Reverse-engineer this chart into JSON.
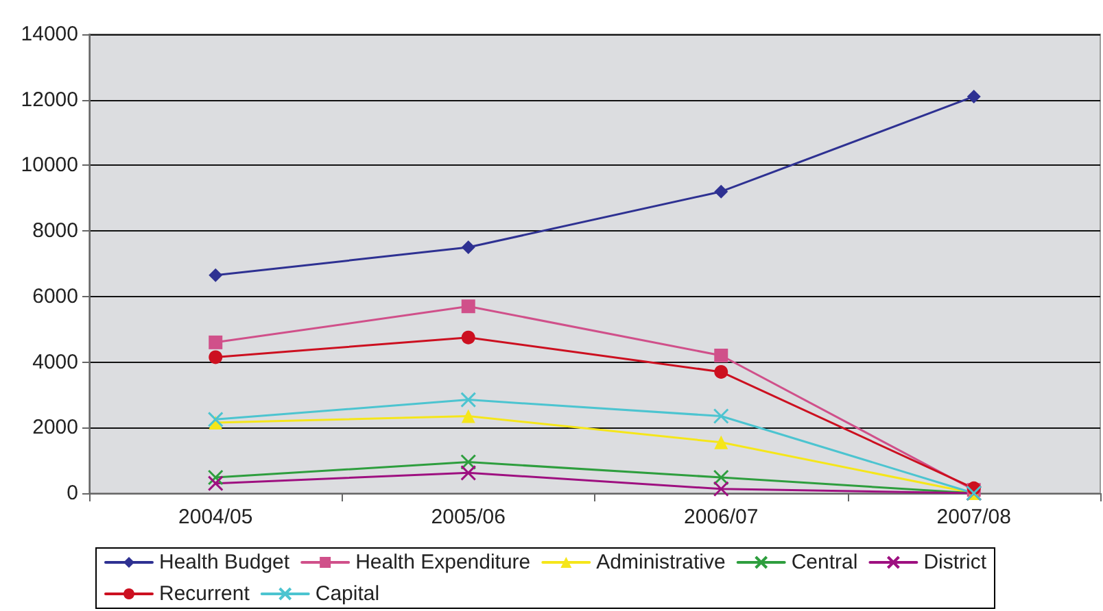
{
  "chart_data": {
    "type": "line",
    "categories": [
      "2004/05",
      "2005/06",
      "2006/07",
      "2007/08"
    ],
    "series": [
      {
        "name": "Health Budget",
        "color": "#2e3192",
        "marker": "diamond",
        "values": [
          6650,
          7500,
          9200,
          12100
        ]
      },
      {
        "name": "Health Expenditure",
        "color": "#d0508a",
        "marker": "square",
        "values": [
          4600,
          5700,
          4200,
          100
        ]
      },
      {
        "name": "Administrative",
        "color": "#f5e61a",
        "marker": "triangle",
        "values": [
          2150,
          2350,
          1550,
          0
        ]
      },
      {
        "name": "Central",
        "color": "#2e9e3e",
        "marker": "cross",
        "values": [
          480,
          950,
          480,
          0
        ]
      },
      {
        "name": "District",
        "color": "#9e1080",
        "marker": "cross",
        "values": [
          300,
          620,
          130,
          0
        ]
      },
      {
        "name": "Recurrent",
        "color": "#cc1020",
        "marker": "circle",
        "values": [
          4150,
          4750,
          3700,
          150
        ]
      },
      {
        "name": "Capital",
        "color": "#4cc4d0",
        "marker": "cross",
        "values": [
          2250,
          2850,
          2350,
          0
        ]
      }
    ],
    "ylim": [
      0,
      14000
    ],
    "yticks": [
      0,
      2000,
      4000,
      6000,
      8000,
      10000,
      12000,
      14000
    ],
    "grid": "y",
    "legend": "bottom",
    "line_style": "solid"
  }
}
